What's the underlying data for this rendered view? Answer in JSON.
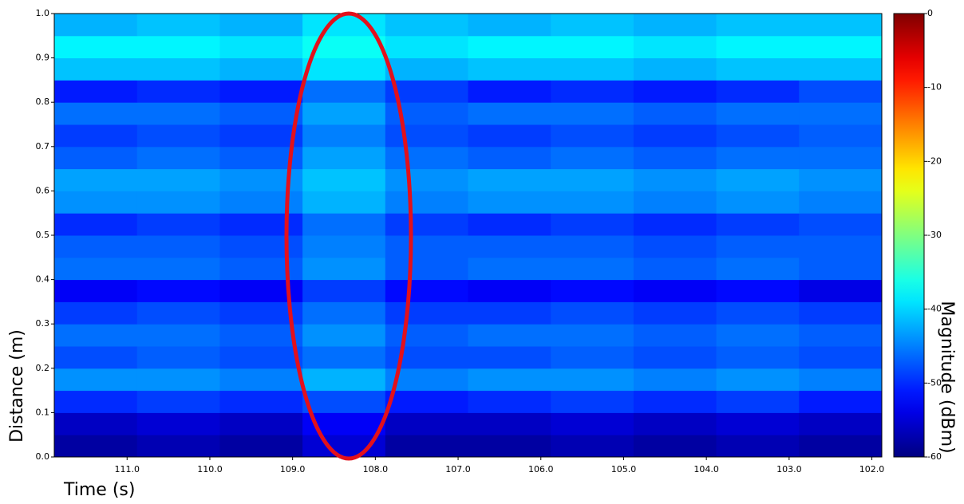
{
  "chart_data": {
    "type": "heatmap",
    "xlabel": "Time (s)",
    "ylabel": "Distance (m)",
    "colorbar_label": "Magnitude (dBm)",
    "colormap": "jet",
    "x_bins": [
      111.88,
      110.88,
      109.88,
      108.88,
      107.88,
      106.88,
      105.88,
      104.88,
      103.88,
      102.88,
      101.88
    ],
    "y_bins": [
      0,
      0.05,
      0.1,
      0.15,
      0.2,
      0.25,
      0.3,
      0.35,
      0.4,
      0.45,
      0.5,
      0.55,
      0.6,
      0.65,
      0.7,
      0.75,
      0.8,
      0.85,
      0.9,
      0.95,
      1.0
    ],
    "z": [
      [
        -58,
        -57,
        -58,
        -55,
        -58,
        -58,
        -57,
        -58,
        -57,
        -58
      ],
      [
        -56,
        -55,
        -56,
        -53,
        -56,
        -56,
        -55,
        -56,
        -55,
        -56
      ],
      [
        -50,
        -49,
        -50,
        -48,
        -51,
        -50,
        -49,
        -50,
        -49,
        -51
      ],
      [
        -44,
        -44,
        -45,
        -42,
        -45,
        -44,
        -44,
        -45,
        -44,
        -45
      ],
      [
        -48,
        -47,
        -48,
        -46,
        -48,
        -48,
        -47,
        -48,
        -47,
        -48
      ],
      [
        -46,
        -46,
        -47,
        -44,
        -47,
        -46,
        -46,
        -47,
        -46,
        -47
      ],
      [
        -49,
        -48,
        -49,
        -46,
        -49,
        -49,
        -48,
        -49,
        -48,
        -49
      ],
      [
        -53,
        -52,
        -53,
        -49,
        -52,
        -53,
        -52,
        -53,
        -52,
        -54
      ],
      [
        -46,
        -46,
        -47,
        -44,
        -47,
        -46,
        -46,
        -47,
        -46,
        -47
      ],
      [
        -47,
        -47,
        -48,
        -45,
        -47,
        -47,
        -47,
        -48,
        -47,
        -47
      ],
      [
        -50,
        -49,
        -50,
        -46,
        -49,
        -50,
        -49,
        -50,
        -49,
        -48
      ],
      [
        -44,
        -44,
        -45,
        -42,
        -45,
        -44,
        -44,
        -45,
        -44,
        -45
      ],
      [
        -43,
        -43,
        -44,
        -41,
        -44,
        -43,
        -43,
        -44,
        -43,
        -44
      ],
      [
        -47,
        -46,
        -47,
        -43,
        -46,
        -47,
        -46,
        -47,
        -46,
        -46
      ],
      [
        -49,
        -48,
        -49,
        -45,
        -48,
        -49,
        -48,
        -49,
        -48,
        -47
      ],
      [
        -46,
        -46,
        -47,
        -43,
        -47,
        -46,
        -46,
        -47,
        -46,
        -46
      ],
      [
        -51,
        -50,
        -51,
        -46,
        -49,
        -51,
        -50,
        -51,
        -50,
        -48
      ],
      [
        -41,
        -41,
        -42,
        -39,
        -42,
        -41,
        -41,
        -42,
        -41,
        -41
      ],
      [
        -38,
        -38,
        -39,
        -37,
        -39,
        -38,
        -38,
        -39,
        -38,
        -38
      ],
      [
        -42,
        -41,
        -42,
        -39,
        -41,
        -42,
        -41,
        -42,
        -41,
        -41
      ]
    ],
    "xlim": [
      111.88,
      101.88
    ],
    "xticks": [
      {
        "value": 111,
        "label": "111.0"
      },
      {
        "value": 110,
        "label": "110.0"
      },
      {
        "value": 109,
        "label": "109.0"
      },
      {
        "value": 108,
        "label": "108.0"
      },
      {
        "value": 107,
        "label": "107.0"
      },
      {
        "value": 106,
        "label": "106.0"
      },
      {
        "value": 105,
        "label": "105.0"
      },
      {
        "value": 104,
        "label": "104.0"
      },
      {
        "value": 103,
        "label": "103.0"
      },
      {
        "value": 102,
        "label": "102.0"
      }
    ],
    "ylim": [
      0,
      1
    ],
    "yticks": [
      {
        "value": 0,
        "label": "0.0"
      },
      0.1,
      0.2,
      0.3,
      0.4,
      0.5,
      0.6,
      0.7,
      0.8,
      0.9,
      {
        "value": 1,
        "label": "1.0"
      }
    ],
    "clim": [
      -60,
      0
    ],
    "cticks": [
      0,
      -10,
      -20,
      -30,
      -40,
      -50,
      -60
    ]
  }
}
